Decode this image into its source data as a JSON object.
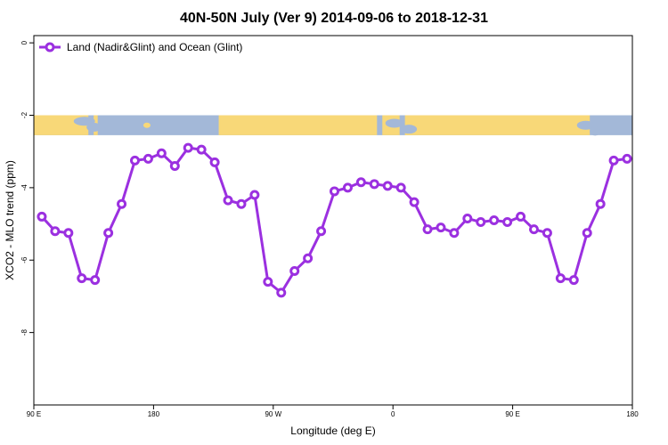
{
  "chart_data": {
    "type": "line",
    "title": "40N-50N July (Ver 9)   2014-09-06 to 2018-12-31",
    "xlabel": "Longitude (deg E)",
    "ylabel": "XCO2 - MLO trend (ppm)",
    "xlim": [
      90,
      540
    ],
    "ylim": [
      -10,
      0.2
    ],
    "x_ticks": [
      {
        "value": 90,
        "label": "90 E"
      },
      {
        "value": 180,
        "label": "180"
      },
      {
        "value": 270,
        "label": "90 W"
      },
      {
        "value": 360,
        "label": "0"
      },
      {
        "value": 450,
        "label": "90 E"
      },
      {
        "value": 540,
        "label": "180"
      }
    ],
    "y_ticks": [
      {
        "value": 0,
        "label": "0"
      },
      {
        "value": -2,
        "label": "-2"
      },
      {
        "value": -4,
        "label": "-4"
      },
      {
        "value": -6,
        "label": "-6"
      },
      {
        "value": -8,
        "label": "-8"
      }
    ],
    "grid": false,
    "legend_position": "top-left",
    "colors": {
      "series": "#9b30e0",
      "ocean": "#a3b8d8",
      "land": "#f8d878"
    },
    "series": [
      {
        "name": "Land (Nadir&Glint) and Ocean (Glint)",
        "x": [
          96,
          106,
          116,
          126,
          136,
          146,
          156,
          166,
          176,
          186,
          196,
          206,
          216,
          226,
          236,
          246,
          256,
          266,
          276,
          286,
          296,
          306,
          316,
          326,
          336,
          346,
          356,
          366,
          376,
          386,
          396,
          406,
          416,
          426,
          436,
          446,
          456,
          466,
          476,
          486,
          496,
          506,
          516,
          526,
          536
        ],
        "values": [
          -4.8,
          -5.2,
          -5.25,
          -6.5,
          -6.55,
          -5.25,
          -4.45,
          -3.25,
          -3.2,
          -3.05,
          -3.4,
          -2.9,
          -2.95,
          -3.3,
          -4.35,
          -4.45,
          -4.2,
          -6.6,
          -6.9,
          -6.3,
          -5.95,
          -5.2,
          -4.1,
          -4.0,
          -3.85,
          -3.9,
          -3.95,
          -4.0,
          -4.4,
          -5.15,
          -5.1,
          -5.25,
          -4.85,
          -4.95,
          -4.9,
          -4.95,
          -4.8,
          -5.15,
          -5.25,
          -6.5,
          -6.55,
          -5.25,
          -4.45,
          -3.25,
          -3.2
        ]
      }
    ],
    "map_strip": {
      "y_top": -2.0,
      "y_bottom": -2.55
    }
  }
}
